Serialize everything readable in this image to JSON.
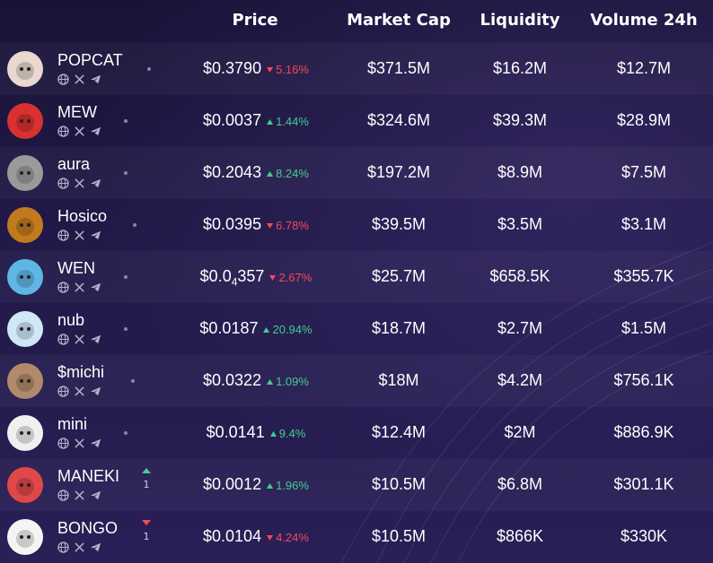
{
  "header": {
    "price": "Price",
    "market_cap": "Market Cap",
    "liquidity": "Liquidity",
    "volume": "Volume 24h"
  },
  "rows": [
    {
      "name": "POPCAT",
      "price": "$0.3790",
      "change": "5.16%",
      "dir": "down",
      "mcap": "$371.5M",
      "liq": "$16.2M",
      "vol": "$12.7M",
      "color": "#e8d8d0"
    },
    {
      "name": "MEW",
      "price": "$0.0037",
      "change": "1.44%",
      "dir": "up",
      "mcap": "$324.6M",
      "liq": "$39.3M",
      "vol": "$28.9M",
      "color": "#d93030"
    },
    {
      "name": "aura",
      "price": "$0.2043",
      "change": "8.24%",
      "dir": "up",
      "mcap": "$197.2M",
      "liq": "$8.9M",
      "vol": "$7.5M",
      "color": "#9a9a9a"
    },
    {
      "name": "Hosico",
      "price": "$0.0395",
      "change": "6.78%",
      "dir": "down",
      "mcap": "$39.5M",
      "liq": "$3.5M",
      "vol": "$3.1M",
      "color": "#c27a1e"
    },
    {
      "name": "WEN",
      "price": "$0.0",
      "price_sub": "4",
      "price_rest": "357",
      "change": "2.67%",
      "dir": "down",
      "mcap": "$25.7M",
      "liq": "$658.5K",
      "vol": "$355.7K",
      "color": "#5fb6e6"
    },
    {
      "name": "nub",
      "price": "$0.0187",
      "change": "20.94%",
      "dir": "up",
      "mcap": "$18.7M",
      "liq": "$2.7M",
      "vol": "$1.5M",
      "color": "#cfe8f8"
    },
    {
      "name": "$michi",
      "price": "$0.0322",
      "change": "1.09%",
      "dir": "up",
      "mcap": "$18M",
      "liq": "$4.2M",
      "vol": "$756.1K",
      "color": "#b08a6a"
    },
    {
      "name": "mini",
      "price": "$0.0141",
      "change": "9.4%",
      "dir": "up",
      "mcap": "$12.4M",
      "liq": "$2M",
      "vol": "$886.9K",
      "color": "#f2f0ee"
    },
    {
      "name": "MANEKI",
      "price": "$0.0012",
      "change": "1.96%",
      "dir": "up",
      "mcap": "$10.5M",
      "liq": "$6.8M",
      "vol": "$301.1K",
      "color": "#e04848",
      "rank": {
        "dir": "up",
        "num": "1"
      }
    },
    {
      "name": "BONGO",
      "price": "$0.0104",
      "change": "4.24%",
      "dir": "down",
      "mcap": "$10.5M",
      "liq": "$866K",
      "vol": "$330K",
      "color": "#f4f4f4",
      "rank": {
        "dir": "down",
        "num": "1"
      }
    }
  ],
  "icons": {
    "socials": [
      "globe-icon",
      "x-icon",
      "telegram-icon"
    ],
    "up_arrow": "triangle-up-icon",
    "down_arrow": "triangle-down-icon"
  }
}
